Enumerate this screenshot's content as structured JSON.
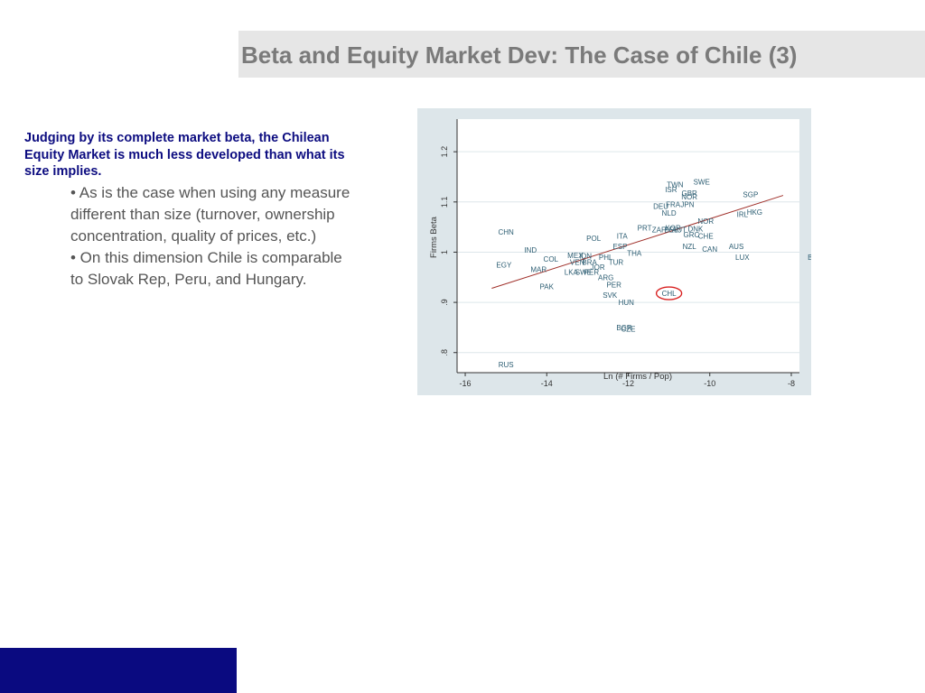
{
  "slide": {
    "title": "Beta and Equity Market Dev: The Case of Chile (3)",
    "lead": "Judging by its complete market beta, the Chilean Equity Market is much less developed than what its size implies.",
    "bullets": [
      "•  As is the case when using any measure different than size (turnover, ownership concentration, quality of prices, etc.)",
      "• On this dimension Chile is comparable to Slovak Rep, Peru, and Hungary."
    ]
  },
  "colors": {
    "title_text": "#7a7a7a",
    "title_bar": "#e6e6e6",
    "lead_text": "#0c0c80",
    "body_text": "#555555",
    "chart_background": "#dde6ea",
    "plot_background": "#ffffff",
    "point_label": "#2d5e73",
    "fit_line": "#a0302a",
    "highlight_ring": "#d82020",
    "footer_bar": "#0a0a80"
  },
  "chart_data": {
    "type": "scatter",
    "xlabel": "Ln (# Firms / Pop)",
    "ylabel": "Firms Beta",
    "xlim": [
      -16.2,
      -7.8
    ],
    "ylim": [
      0.76,
      1.265
    ],
    "xticks": [
      -16,
      -14,
      -12,
      -10,
      -8
    ],
    "xtick_labels": [
      "-16",
      "-14",
      "-12",
      "-10",
      "-8"
    ],
    "yticks": [
      0.8,
      0.9,
      1.0,
      1.1,
      1.2
    ],
    "ytick_labels": [
      ".8",
      ".9",
      "1",
      "1.1",
      "1.2"
    ],
    "grid": "horizontal",
    "legend": "none",
    "fit_line": {
      "x": [
        -15.35,
        -8.2
      ],
      "y": [
        0.928,
        1.113
      ]
    },
    "highlight": "CHL",
    "points": [
      {
        "label": "TWN",
        "x": -10.85,
        "y": 1.135
      },
      {
        "label": "SWE",
        "x": -10.2,
        "y": 1.14
      },
      {
        "label": "ISR",
        "x": -10.95,
        "y": 1.125
      },
      {
        "label": "GBR",
        "x": -10.5,
        "y": 1.118
      },
      {
        "label": "NOR",
        "x": -10.5,
        "y": 1.11
      },
      {
        "label": "DEU",
        "x": -11.2,
        "y": 1.092
      },
      {
        "label": "FRA",
        "x": -10.9,
        "y": 1.095
      },
      {
        "label": "JPN",
        "x": -10.55,
        "y": 1.095
      },
      {
        "label": "NLD",
        "x": -11.0,
        "y": 1.078
      },
      {
        "label": "SGP",
        "x": -9.0,
        "y": 1.115
      },
      {
        "label": "IRL",
        "x": -9.2,
        "y": 1.075
      },
      {
        "label": "HKG",
        "x": -8.9,
        "y": 1.08
      },
      {
        "label": "NOR",
        "x": -10.1,
        "y": 1.062
      },
      {
        "label": "KOR",
        "x": -10.9,
        "y": 1.048
      },
      {
        "label": "PRT",
        "x": -11.6,
        "y": 1.048
      },
      {
        "label": "ZAF",
        "x": -11.25,
        "y": 1.045
      },
      {
        "label": "BEL",
        "x": -10.95,
        "y": 1.045
      },
      {
        "label": "AUT",
        "x": -10.75,
        "y": 1.045
      },
      {
        "label": "DNK",
        "x": -10.35,
        "y": 1.047
      },
      {
        "label": "GRC",
        "x": -10.45,
        "y": 1.035
      },
      {
        "label": "CHE",
        "x": -10.1,
        "y": 1.032
      },
      {
        "label": "ITA",
        "x": -12.15,
        "y": 1.032
      },
      {
        "label": "POL",
        "x": -12.85,
        "y": 1.028
      },
      {
        "label": "ESP",
        "x": -12.2,
        "y": 1.012
      },
      {
        "label": "THA",
        "x": -11.85,
        "y": 0.998
      },
      {
        "label": "NZL",
        "x": -10.5,
        "y": 1.012
      },
      {
        "label": "CAN",
        "x": -10.0,
        "y": 1.006
      },
      {
        "label": "AUS",
        "x": -9.35,
        "y": 1.012
      },
      {
        "label": "LUX",
        "x": -9.2,
        "y": 0.99
      },
      {
        "label": "BMU",
        "x": -7.4,
        "y": 0.99
      },
      {
        "label": "CHN",
        "x": -15.0,
        "y": 1.04
      },
      {
        "label": "IND",
        "x": -14.4,
        "y": 1.004
      },
      {
        "label": "EGY",
        "x": -15.05,
        "y": 0.975
      },
      {
        "label": "COL",
        "x": -13.9,
        "y": 0.986
      },
      {
        "label": "MAR",
        "x": -14.2,
        "y": 0.966
      },
      {
        "label": "MEX",
        "x": -13.3,
        "y": 0.994
      },
      {
        "label": "IDN",
        "x": -13.05,
        "y": 0.993
      },
      {
        "label": "VEN",
        "x": -13.25,
        "y": 0.98
      },
      {
        "label": "BRA",
        "x": -12.95,
        "y": 0.98
      },
      {
        "label": "PHL",
        "x": -12.55,
        "y": 0.99
      },
      {
        "label": "TUR",
        "x": -12.3,
        "y": 0.98
      },
      {
        "label": "JOR",
        "x": -12.75,
        "y": 0.97
      },
      {
        "label": "LKA",
        "x": -13.4,
        "y": 0.96
      },
      {
        "label": "SWE",
        "x": -13.1,
        "y": 0.96
      },
      {
        "label": "PER",
        "x": -12.9,
        "y": 0.96
      },
      {
        "label": "ARG",
        "x": -12.55,
        "y": 0.95
      },
      {
        "label": "PAK",
        "x": -14.0,
        "y": 0.932
      },
      {
        "label": "PER",
        "x": -12.35,
        "y": 0.935
      },
      {
        "label": "SVK",
        "x": -12.45,
        "y": 0.915
      },
      {
        "label": "CHL",
        "x": -11.0,
        "y": 0.918
      },
      {
        "label": "HUN",
        "x": -12.05,
        "y": 0.9
      },
      {
        "label": "BGR",
        "x": -12.1,
        "y": 0.85
      },
      {
        "label": "CZE",
        "x": -12.0,
        "y": 0.847
      },
      {
        "label": "RUS",
        "x": -15.0,
        "y": 0.776
      }
    ]
  }
}
